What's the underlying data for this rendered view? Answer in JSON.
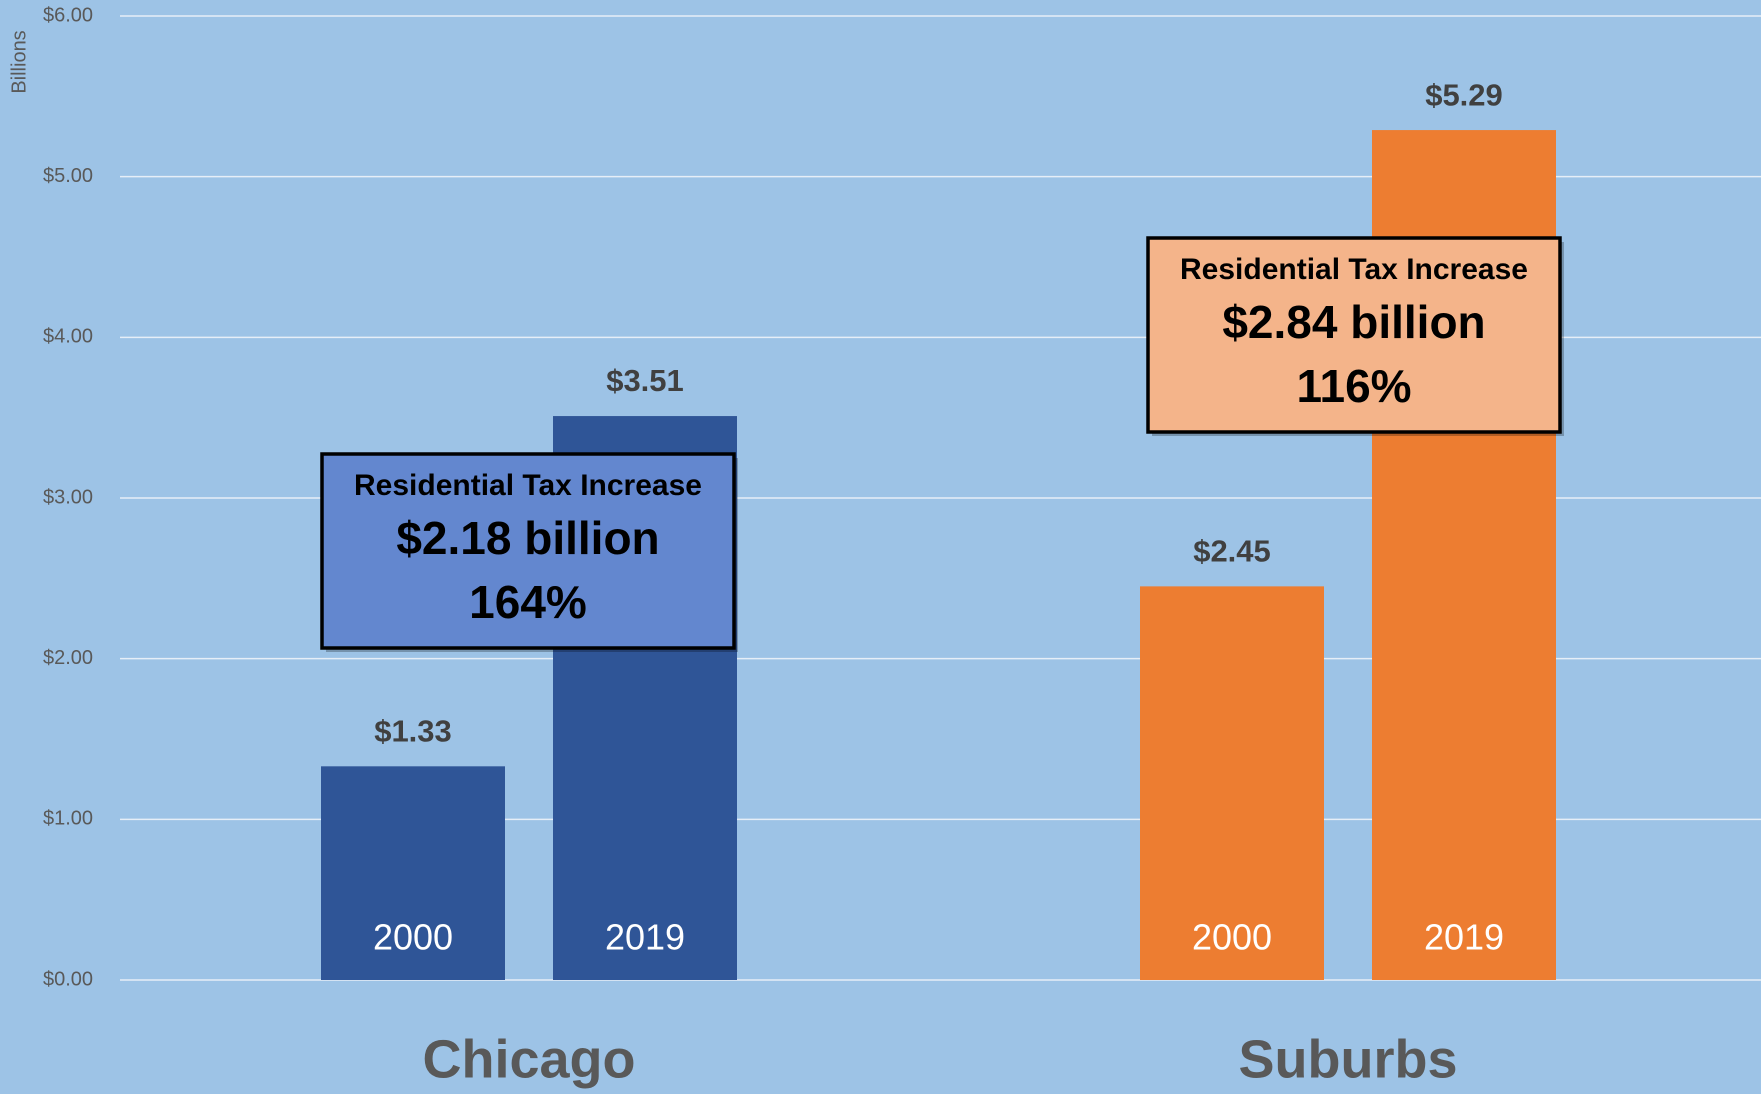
{
  "chart_data": {
    "type": "bar",
    "y_axis_label": "Billions",
    "categories": [
      "Chicago",
      "Suburbs"
    ],
    "category_colors": [
      "#2f5597",
      "#ed7d31"
    ],
    "series": [
      {
        "name": "2000",
        "values": [
          1.33,
          2.45
        ],
        "value_labels": [
          "$1.33",
          "$2.45"
        ]
      },
      {
        "name": "2019",
        "values": [
          3.51,
          5.29
        ],
        "value_labels": [
          "$3.51",
          "$5.29"
        ]
      }
    ],
    "ylim": [
      0,
      6
    ],
    "yticks": [
      {
        "value": 0,
        "label": "$0.00"
      },
      {
        "value": 1,
        "label": "$1.00"
      },
      {
        "value": 2,
        "label": "$2.00"
      },
      {
        "value": 3,
        "label": "$3.00"
      },
      {
        "value": 4,
        "label": "$4.00"
      },
      {
        "value": 5,
        "label": "$5.00"
      },
      {
        "value": 6,
        "label": "$6.00"
      }
    ],
    "grid": true,
    "annotations": [
      {
        "title": "Residential Tax Increase",
        "amount": "$2.18 billion",
        "percent": "164%"
      },
      {
        "title": "Residential Tax Increase",
        "amount": "$2.84 billion",
        "percent": "116%"
      }
    ]
  }
}
